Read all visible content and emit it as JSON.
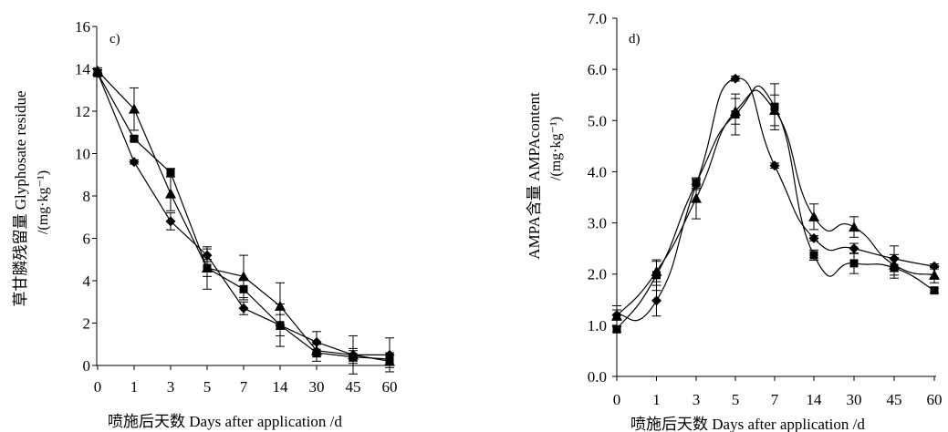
{
  "chart_data": [
    {
      "type": "line",
      "panel_label": "c)",
      "ylabel_cn": "草甘膦残留量 Glyphosate residue",
      "yunit": "/(mg·kg⁻¹)",
      "xlabel": "喷施后天数  Days after application /d",
      "categories": [
        "0",
        "1",
        "3",
        "5",
        "7",
        "14",
        "30",
        "45",
        "60"
      ],
      "ylim": [
        0,
        16
      ],
      "yticks": [
        "0",
        "2",
        "4",
        "6",
        "8",
        "10",
        "12",
        "14",
        "16"
      ],
      "series": [
        {
          "marker": "diamond",
          "values": [
            13.8,
            9.6,
            6.8,
            5.2,
            2.7,
            1.9,
            1.1,
            0.5,
            0.5
          ],
          "errors": [
            0.15,
            0.1,
            0.4,
            0.3,
            0.3,
            0.5,
            0.5,
            0.9,
            0.8
          ]
        },
        {
          "marker": "square",
          "values": [
            13.8,
            10.7,
            9.1,
            4.6,
            3.6,
            1.9,
            0.6,
            0.4,
            0.3
          ],
          "errors": [
            0.15,
            0.1,
            0.2,
            1.0,
            0.5,
            1.0,
            0.4,
            0.3,
            0.3
          ]
        },
        {
          "marker": "triangle",
          "values": [
            13.9,
            12.1,
            8.1,
            4.6,
            4.2,
            2.8,
            0.7,
            0.5,
            0.2
          ],
          "errors": [
            0.15,
            1.0,
            0.8,
            0.4,
            1.0,
            1.1,
            0.3,
            0.3,
            0.3
          ]
        }
      ]
    },
    {
      "type": "line",
      "panel_label": "d)",
      "ylabel_cn": "AMPA含量  AMPAcontent",
      "yunit": "/(mg·kg⁻¹)",
      "xlabel": "喷施后天数  Days after application /d",
      "categories": [
        "0",
        "1",
        "3",
        "5",
        "7",
        "14",
        "30",
        "45",
        "60"
      ],
      "ylim": [
        0,
        7
      ],
      "yticks": [
        "0.0",
        "1.0",
        "2.0",
        "3.0",
        "4.0",
        "5.0",
        "6.0",
        "7.0"
      ],
      "series": [
        {
          "marker": "diamond",
          "values": [
            1.2,
            1.48,
            3.75,
            5.82,
            4.12,
            2.7,
            2.5,
            2.3,
            2.15
          ],
          "errors": [
            0.1,
            0.3,
            0.1,
            0.05,
            0.05,
            0.05,
            0.1,
            0.25,
            0.05
          ]
        },
        {
          "marker": "square",
          "values": [
            0.92,
            1.98,
            3.78,
            5.12,
            5.27,
            2.37,
            2.21,
            2.12,
            1.68
          ],
          "errors": [
            0.05,
            0.3,
            0.1,
            0.4,
            0.45,
            0.1,
            0.2,
            0.2,
            0.05
          ]
        },
        {
          "marker": "triangle",
          "values": [
            1.18,
            2.05,
            3.48,
            5.18,
            5.2,
            3.12,
            2.92,
            2.18,
            1.98
          ],
          "errors": [
            0.2,
            0.2,
            0.4,
            0.25,
            0.3,
            0.25,
            0.2,
            0.2,
            0.15
          ]
        }
      ]
    }
  ]
}
